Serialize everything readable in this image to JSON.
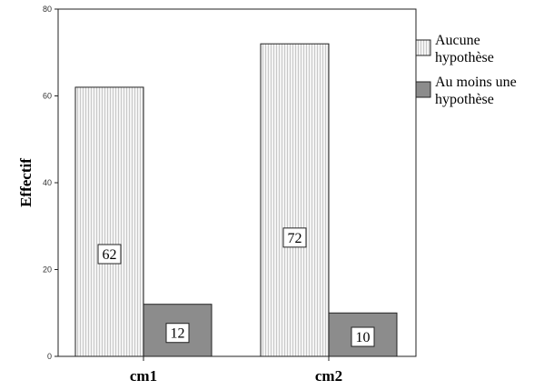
{
  "chart_data": {
    "type": "bar",
    "title": "",
    "xlabel": "",
    "ylabel": "Effectif",
    "categories": [
      "cm1",
      "cm2"
    ],
    "ylim": [
      0,
      80
    ],
    "yticks": [
      0,
      20,
      40,
      60,
      80
    ],
    "grid": false,
    "legend_position": "right",
    "series": [
      {
        "name": "Aucune hypothèse",
        "legend_lines": [
          "Aucune",
          "hypothèse"
        ],
        "values": [
          62,
          72
        ],
        "color": "#f2f2f2",
        "pattern": "dotted"
      },
      {
        "name": "Au moins une hypothèse",
        "legend_lines": [
          "Au moins une",
          "hypothèse"
        ],
        "values": [
          12,
          10
        ],
        "color": "#8c8c8c",
        "pattern": "solid"
      }
    ]
  }
}
